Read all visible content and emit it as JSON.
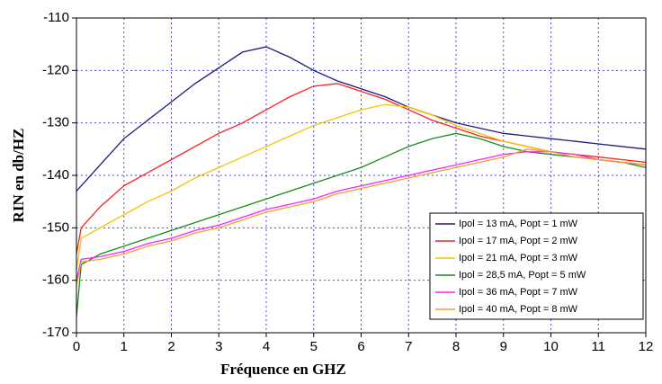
{
  "chart_data": {
    "type": "line",
    "x_label": "Fréquence en GHZ",
    "y_label": "RIN en db/HZ",
    "x": [
      0,
      0.1,
      0.5,
      1,
      1.5,
      2,
      2.5,
      3,
      3.5,
      4,
      4.5,
      5,
      5.5,
      6,
      6.5,
      7,
      7.5,
      8,
      8.5,
      9,
      9.5,
      10,
      10.5,
      11,
      11.5,
      12
    ],
    "series": [
      {
        "name": "Ipol = 13 mA, Popt = 1 mW",
        "color": "#1a1a80",
        "values": [
          -143,
          -142,
          -138,
          -133,
          -129.5,
          -126,
          -122.5,
          -119.5,
          -116.5,
          -115.5,
          -117.5,
          -120,
          -122,
          -123.5,
          -125,
          -127,
          -128.5,
          -130,
          -131,
          -132,
          -132.5,
          -133,
          -133.5,
          -134,
          -134.5,
          -135
        ]
      },
      {
        "name": "Ipol = 17 mA, Popt = 2 mW",
        "color": "#ff2020",
        "values": [
          -155,
          -150,
          -146,
          -142,
          -139.5,
          -137,
          -134.5,
          -132,
          -130,
          -127.5,
          -125,
          -123,
          -122.5,
          -124,
          -125.5,
          -127.5,
          -129.5,
          -131,
          -132.5,
          -133.5,
          -134.5,
          -135.5,
          -136,
          -136.5,
          -137,
          -137.5
        ]
      },
      {
        "name": "Ipol = 21 mA, Popt = 3 mW",
        "color": "#f5c400",
        "values": [
          -158,
          -152,
          -150,
          -147.5,
          -145,
          -143,
          -140.5,
          -138.5,
          -136.5,
          -134.5,
          -132.5,
          -130.5,
          -129,
          -127.5,
          -126.5,
          -127,
          -128.5,
          -130.5,
          -132,
          -133.5,
          -134.5,
          -135.5,
          -136,
          -137,
          -137.5,
          -138
        ]
      },
      {
        "name": "Ipol = 28,5 mA, Popt = 5 mW",
        "color": "#1a8a1a",
        "values": [
          -167,
          -157,
          -155,
          -153.5,
          -152,
          -150.5,
          -149,
          -147.5,
          -146,
          -144.5,
          -143,
          -141.5,
          -140,
          -138.5,
          -136.5,
          -134.5,
          -133,
          -132,
          -133,
          -134.5,
          -135.5,
          -136,
          -136.5,
          -137,
          -137.5,
          -138.5
        ]
      },
      {
        "name": "Ipol = 36 mA, Popt = 7 mW",
        "color": "#ff20ff",
        "values": [
          -160,
          -156,
          -155.5,
          -154.5,
          -153,
          -152,
          -150.5,
          -149.5,
          -148,
          -146.5,
          -145.5,
          -144.5,
          -143,
          -142,
          -141,
          -140,
          -139,
          -138,
          -137,
          -136,
          -135.5,
          -135.5,
          -136,
          -137,
          -137.5,
          -138
        ]
      },
      {
        "name": "Ipol = 40 mA, Popt = 8 mW",
        "color": "#f0a030",
        "values": [
          -161,
          -156.5,
          -156,
          -155,
          -153.5,
          -152.5,
          -151,
          -150,
          -148.5,
          -147,
          -146,
          -145,
          -143.5,
          -142.5,
          -141.5,
          -140.5,
          -139.5,
          -138.5,
          -137.5,
          -136.5,
          -135,
          -135.5,
          -136.5,
          -137,
          -137.5,
          -138
        ]
      }
    ],
    "xlim": [
      0,
      12
    ],
    "xticks": [
      0,
      1,
      2,
      3,
      4,
      5,
      6,
      7,
      8,
      9,
      10,
      11,
      12
    ],
    "ylim": [
      -170,
      -110
    ],
    "yticks": [
      -170,
      -160,
      -150,
      -140,
      -130,
      -120,
      -110
    ],
    "grid": true,
    "legend": "lower right"
  }
}
